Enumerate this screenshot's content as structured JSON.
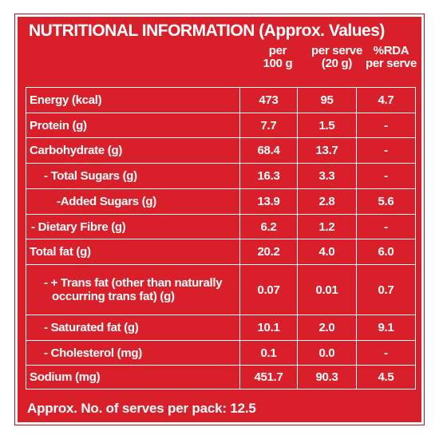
{
  "title": "NUTRITIONAL INFORMATION (Approx. Values)",
  "columns": {
    "per100_line1": "per",
    "per100_line2": "100 g",
    "perserve_line1": "per serve",
    "perserve_line2": "(20 g)",
    "rda_line1": "%RDA",
    "rda_line2": "per serve"
  },
  "rows": [
    {
      "label": "Energy (kcal)",
      "per100": "473",
      "perserve": "95",
      "rda": "4.7"
    },
    {
      "label": "Protein (g)",
      "per100": "7.7",
      "perserve": "1.5",
      "rda": "-"
    },
    {
      "label": "Carbohydrate (g)",
      "per100": "68.4",
      "perserve": "13.7",
      "rda": "-"
    },
    {
      "label": "- Total Sugars (g)",
      "per100": "16.3",
      "perserve": "3.3",
      "rda": "-"
    },
    {
      "label": "-Added Sugars (g)",
      "per100": "13.9",
      "perserve": "2.8",
      "rda": "5.6"
    },
    {
      "label": "- Dietary Fibre (g)",
      "per100": "6.2",
      "perserve": "1.2",
      "rda": "-"
    },
    {
      "label": "Total fat (g)",
      "per100": "20.2",
      "perserve": "4.0",
      "rda": "6.0"
    },
    {
      "label_line1": "- + Trans fat (other than naturally",
      "label_line2": "occurring trans fat) (g)",
      "per100": "0.07",
      "perserve": "0.01",
      "rda": "0.7"
    },
    {
      "label": "- Saturated fat (g)",
      "per100": "10.1",
      "perserve": "2.0",
      "rda": "9.1"
    },
    {
      "label": "- Cholesterol (mg)",
      "per100": "0.1",
      "perserve": "0.0",
      "rda": "-"
    },
    {
      "label": "Sodium (mg)",
      "per100": "451.7",
      "perserve": "90.3",
      "rda": "4.5"
    }
  ],
  "footer": "Approx. No. of serves per pack: 12.5",
  "colors": {
    "background": "#d91f2a",
    "text": "#ffffff"
  }
}
